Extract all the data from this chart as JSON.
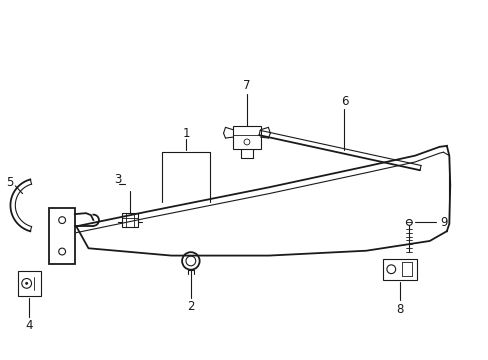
{
  "bg_color": "#ffffff",
  "line_color": "#1a1a1a",
  "figsize": [
    4.89,
    3.6
  ],
  "dpi": 100,
  "xlim": [
    0,
    10
  ],
  "ylim": [
    0,
    7.2
  ],
  "label_fontsize": 8.5
}
